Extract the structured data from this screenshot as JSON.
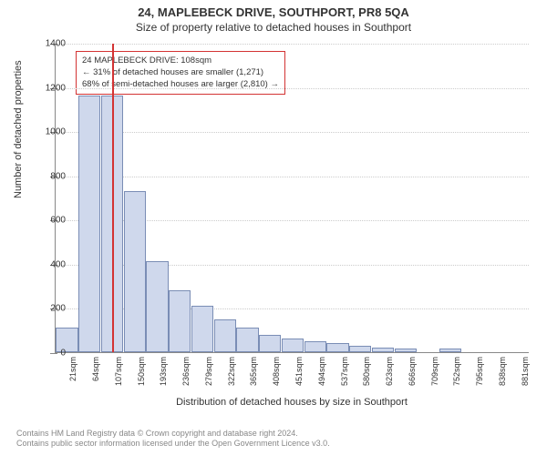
{
  "title": {
    "main": "24, MAPLEBECK DRIVE, SOUTHPORT, PR8 5QA",
    "sub": "Size of property relative to detached houses in Southport",
    "main_fontsize": 13,
    "sub_fontsize": 12
  },
  "chart": {
    "type": "histogram",
    "ylabel": "Number of detached properties",
    "xlabel": "Distribution of detached houses by size in Southport",
    "ylim": [
      0,
      1400
    ],
    "ytick_step": 200,
    "yticks": [
      0,
      200,
      400,
      600,
      800,
      1000,
      1200,
      1400
    ],
    "x_categories": [
      "21sqm",
      "64sqm",
      "107sqm",
      "150sqm",
      "193sqm",
      "236sqm",
      "279sqm",
      "322sqm",
      "365sqm",
      "408sqm",
      "451sqm",
      "494sqm",
      "537sqm",
      "580sqm",
      "623sqm",
      "666sqm",
      "709sqm",
      "752sqm",
      "795sqm",
      "838sqm",
      "881sqm"
    ],
    "values": [
      110,
      1160,
      1160,
      730,
      410,
      280,
      210,
      150,
      110,
      80,
      60,
      50,
      40,
      30,
      20,
      15,
      0,
      15,
      0,
      0,
      0
    ],
    "bar_fill": "#cfd8ec",
    "bar_stroke": "#7a8db5",
    "background_color": "#ffffff",
    "grid_color": "#cccccc",
    "axis_color": "#888888",
    "label_fontsize": 11,
    "tick_fontsize": 10,
    "xtick_fontsize": 9
  },
  "marker": {
    "position_sqm": 108,
    "line_color": "#d33333",
    "annotation_border": "#d33333",
    "annotation_bg": "#ffffff",
    "line1": "24 MAPLEBECK DRIVE: 108sqm",
    "line2": "← 31% of detached houses are smaller (1,271)",
    "line3": "68% of semi-detached houses are larger (2,810) →",
    "annotation_fontsize": 9.5
  },
  "footer": {
    "line1": "Contains HM Land Registry data © Crown copyright and database right 2024.",
    "line2": "Contains public sector information licensed under the Open Government Licence v3.0.",
    "color": "#888888",
    "fontsize": 9
  }
}
